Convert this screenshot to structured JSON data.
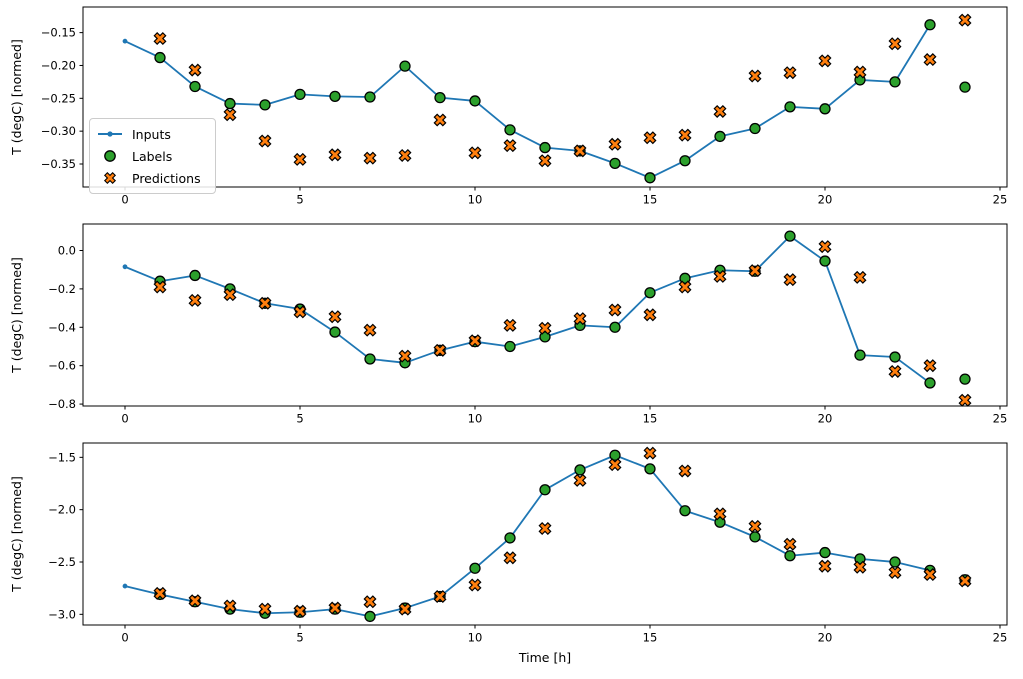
{
  "figure": {
    "xlabel": "Time [h]",
    "ylabel": "T (degC) [normed]",
    "colors": {
      "inputs": "#1f77b4",
      "labels": "#2ca02c",
      "predictions": "#ff7f0e",
      "marker_edge": "#000000",
      "spine": "#000000",
      "legend_border": "#cccccc"
    },
    "legend": {
      "location": "left of top subplot",
      "items": [
        {
          "label": "Inputs",
          "marker": "line-with-dot",
          "color": "#1f77b4"
        },
        {
          "label": "Labels",
          "marker": "filled-circle",
          "color": "#2ca02c"
        },
        {
          "label": "Predictions",
          "marker": "filled-x",
          "color": "#ff7f0e"
        }
      ]
    }
  },
  "chart_data": [
    {
      "type": "line",
      "title": "",
      "xlabel": "",
      "ylabel": "T (degC) [normed]",
      "grid": false,
      "xlim": [
        -1.2,
        25.2
      ],
      "ylim": [
        -0.385,
        -0.111
      ],
      "xticks": [
        0,
        5,
        10,
        15,
        20,
        25
      ],
      "xtick_labels": [
        "0",
        "5",
        "10",
        "15",
        "20",
        "25"
      ],
      "yticks": [
        -0.15,
        -0.2,
        -0.25,
        -0.3,
        -0.35
      ],
      "ytick_labels": [
        "−0.15",
        "−0.20",
        "−0.25",
        "−0.30",
        "−0.35"
      ],
      "series": [
        {
          "name": "Inputs",
          "plot": "line+dot",
          "color": "#1f77b4",
          "x": [
            0,
            1,
            2,
            3,
            4,
            5,
            6,
            7,
            8,
            9,
            10,
            11,
            12,
            13,
            14,
            15,
            16,
            17,
            18,
            19,
            20,
            21,
            22,
            23
          ],
          "y": [
            -0.163,
            -0.188,
            -0.232,
            -0.258,
            -0.26,
            -0.244,
            -0.247,
            -0.248,
            -0.201,
            -0.249,
            -0.254,
            -0.298,
            -0.325,
            -0.33,
            -0.349,
            -0.371,
            -0.345,
            -0.308,
            -0.296,
            -0.263,
            -0.266,
            -0.222,
            -0.225,
            -0.138
          ]
        },
        {
          "name": "Labels",
          "plot": "scatter-circle",
          "color": "#2ca02c",
          "x": [
            1,
            2,
            3,
            4,
            5,
            6,
            7,
            8,
            9,
            10,
            11,
            12,
            13,
            14,
            15,
            16,
            17,
            18,
            19,
            20,
            21,
            22,
            23,
            24
          ],
          "y": [
            -0.188,
            -0.232,
            -0.258,
            -0.26,
            -0.244,
            -0.247,
            -0.248,
            -0.201,
            -0.249,
            -0.254,
            -0.298,
            -0.325,
            -0.33,
            -0.349,
            -0.371,
            -0.345,
            -0.308,
            -0.296,
            -0.263,
            -0.266,
            -0.222,
            -0.225,
            -0.138,
            -0.233
          ]
        },
        {
          "name": "Predictions",
          "plot": "scatter-x",
          "color": "#ff7f0e",
          "x": [
            1,
            2,
            3,
            4,
            5,
            6,
            7,
            8,
            9,
            10,
            11,
            12,
            13,
            14,
            15,
            16,
            17,
            18,
            19,
            20,
            21,
            22,
            23,
            24
          ],
          "y": [
            -0.159,
            -0.207,
            -0.275,
            -0.315,
            -0.343,
            -0.336,
            -0.341,
            -0.337,
            -0.283,
            -0.333,
            -0.322,
            -0.345,
            -0.33,
            -0.32,
            -0.31,
            -0.306,
            -0.27,
            -0.216,
            -0.211,
            -0.193,
            -0.21,
            -0.167,
            -0.191,
            -0.131
          ]
        }
      ]
    },
    {
      "type": "line",
      "title": "",
      "xlabel": "",
      "ylabel": "T (degC) [normed]",
      "grid": false,
      "xlim": [
        -1.2,
        25.2
      ],
      "ylim": [
        -0.81,
        0.138
      ],
      "xticks": [
        0,
        5,
        10,
        15,
        20,
        25
      ],
      "xtick_labels": [
        "0",
        "5",
        "10",
        "15",
        "20",
        "25"
      ],
      "yticks": [
        0.0,
        -0.2,
        -0.4,
        -0.6,
        -0.8
      ],
      "ytick_labels": [
        "0.0",
        "−0.2",
        "−0.4",
        "−0.6",
        "−0.8"
      ],
      "series": [
        {
          "name": "Inputs",
          "plot": "line+dot",
          "color": "#1f77b4",
          "x": [
            0,
            1,
            2,
            3,
            4,
            5,
            6,
            7,
            8,
            9,
            10,
            11,
            12,
            13,
            14,
            15,
            16,
            17,
            18,
            19,
            20,
            21,
            22,
            23
          ],
          "y": [
            -0.085,
            -0.16,
            -0.13,
            -0.2,
            -0.275,
            -0.305,
            -0.425,
            -0.565,
            -0.585,
            -0.52,
            -0.475,
            -0.5,
            -0.45,
            -0.39,
            -0.4,
            -0.22,
            -0.145,
            -0.103,
            -0.108,
            0.075,
            -0.055,
            -0.545,
            -0.555,
            -0.69
          ]
        },
        {
          "name": "Labels",
          "plot": "scatter-circle",
          "color": "#2ca02c",
          "x": [
            1,
            2,
            3,
            4,
            5,
            6,
            7,
            8,
            9,
            10,
            11,
            12,
            13,
            14,
            15,
            16,
            17,
            18,
            19,
            20,
            21,
            22,
            23,
            24
          ],
          "y": [
            -0.16,
            -0.13,
            -0.2,
            -0.275,
            -0.305,
            -0.425,
            -0.565,
            -0.585,
            -0.52,
            -0.475,
            -0.5,
            -0.45,
            -0.39,
            -0.4,
            -0.22,
            -0.145,
            -0.103,
            -0.108,
            0.075,
            -0.055,
            -0.545,
            -0.555,
            -0.69,
            -0.67
          ]
        },
        {
          "name": "Predictions",
          "plot": "scatter-x",
          "color": "#ff7f0e",
          "x": [
            1,
            2,
            3,
            4,
            5,
            6,
            7,
            8,
            9,
            10,
            11,
            12,
            13,
            14,
            15,
            16,
            17,
            18,
            19,
            20,
            21,
            22,
            23,
            24
          ],
          "y": [
            -0.19,
            -0.26,
            -0.23,
            -0.275,
            -0.32,
            -0.345,
            -0.415,
            -0.55,
            -0.52,
            -0.47,
            -0.39,
            -0.405,
            -0.355,
            -0.31,
            -0.335,
            -0.19,
            -0.135,
            -0.105,
            -0.152,
            0.02,
            -0.14,
            -0.63,
            -0.6,
            -0.78
          ]
        }
      ]
    },
    {
      "type": "line",
      "title": "",
      "xlabel": "Time [h]",
      "ylabel": "T (degC) [normed]",
      "grid": false,
      "xlim": [
        -1.2,
        25.2
      ],
      "ylim": [
        -3.102,
        -1.363
      ],
      "xticks": [
        0,
        5,
        10,
        15,
        20,
        25
      ],
      "xtick_labels": [
        "0",
        "5",
        "10",
        "15",
        "20",
        "25"
      ],
      "yticks": [
        -1.5,
        -2.0,
        -2.5,
        -3.0
      ],
      "ytick_labels": [
        "−1.5",
        "−2.0",
        "−2.5",
        "−3.0"
      ],
      "series": [
        {
          "name": "Inputs",
          "plot": "line+dot",
          "color": "#1f77b4",
          "x": [
            0,
            1,
            2,
            3,
            4,
            5,
            6,
            7,
            8,
            9,
            10,
            11,
            12,
            13,
            14,
            15,
            16,
            17,
            18,
            19,
            20,
            21,
            22,
            23
          ],
          "y": [
            -2.73,
            -2.81,
            -2.88,
            -2.95,
            -2.99,
            -2.98,
            -2.95,
            -3.02,
            -2.94,
            -2.83,
            -2.56,
            -2.27,
            -1.81,
            -1.62,
            -1.48,
            -1.61,
            -2.01,
            -2.12,
            -2.26,
            -2.44,
            -2.41,
            -2.47,
            -2.5,
            -2.58
          ]
        },
        {
          "name": "Labels",
          "plot": "scatter-circle",
          "color": "#2ca02c",
          "x": [
            1,
            2,
            3,
            4,
            5,
            6,
            7,
            8,
            9,
            10,
            11,
            12,
            13,
            14,
            15,
            16,
            17,
            18,
            19,
            20,
            21,
            22,
            23,
            24
          ],
          "y": [
            -2.81,
            -2.88,
            -2.95,
            -2.99,
            -2.98,
            -2.95,
            -3.02,
            -2.94,
            -2.83,
            -2.56,
            -2.27,
            -1.81,
            -1.62,
            -1.48,
            -1.61,
            -2.01,
            -2.12,
            -2.26,
            -2.44,
            -2.41,
            -2.47,
            -2.5,
            -2.58,
            -2.67
          ]
        },
        {
          "name": "Predictions",
          "plot": "scatter-x",
          "color": "#ff7f0e",
          "x": [
            1,
            2,
            3,
            4,
            5,
            6,
            7,
            8,
            9,
            10,
            11,
            12,
            13,
            14,
            15,
            16,
            17,
            18,
            19,
            20,
            21,
            22,
            23,
            24
          ],
          "y": [
            -2.8,
            -2.87,
            -2.92,
            -2.95,
            -2.97,
            -2.94,
            -2.88,
            -2.95,
            -2.83,
            -2.72,
            -2.46,
            -2.18,
            -1.72,
            -1.57,
            -1.46,
            -1.63,
            -2.04,
            -2.16,
            -2.33,
            -2.54,
            -2.55,
            -2.6,
            -2.62,
            -2.68
          ]
        }
      ]
    }
  ]
}
